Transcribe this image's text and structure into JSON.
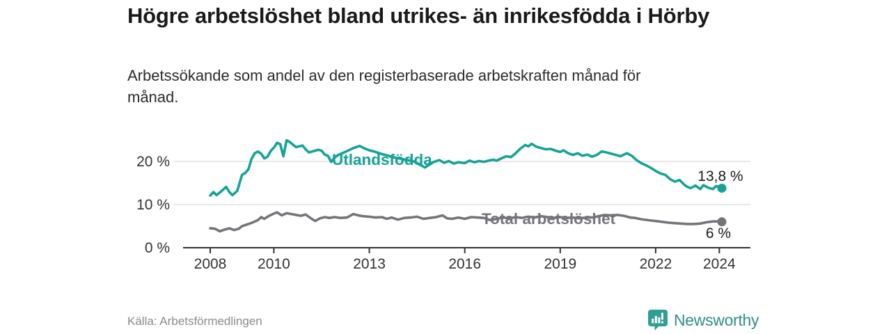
{
  "header": {
    "title": "Högre arbetslöshet bland utrikes- än inrikesfödda i Hörby",
    "subtitle": "Arbetssökande som andel av den registerbaserade arbetskraften månad för månad."
  },
  "footer": {
    "source": "Källa: Arbetsförmedlingen",
    "brand": "Newsworthy"
  },
  "colors": {
    "accent": "#15a396",
    "gray": "#75747a",
    "axis": "#333333",
    "grid": "#d9d9d9",
    "text": "#1a1a1a",
    "muted": "#8a8a8a",
    "brand": "#2f9e93"
  },
  "chart_data": {
    "type": "line",
    "title": "Högre arbetslöshet bland utrikes- än inrikesfödda i Hörby",
    "subtitle": "Arbetssökande som andel av den registerbaserade arbetskraften månad för månad.",
    "xlabel": "",
    "ylabel": "",
    "ylim": [
      0,
      27
    ],
    "xlim": [
      2007.6,
      2024.9
    ],
    "grid": "horizontal",
    "legend_position": "inline-labels",
    "yticks": [
      {
        "value": 0,
        "label": "0 %"
      },
      {
        "value": 10,
        "label": "10 %"
      },
      {
        "value": 20,
        "label": "20 %"
      }
    ],
    "xticks": [
      {
        "value": 2008,
        "label": "2008"
      },
      {
        "value": 2010,
        "label": "2010"
      },
      {
        "value": 2013,
        "label": "2013"
      },
      {
        "value": 2016,
        "label": "2016"
      },
      {
        "value": 2019,
        "label": "2019"
      },
      {
        "value": 2022,
        "label": "2022"
      },
      {
        "value": 2024,
        "label": "2024"
      }
    ],
    "series": [
      {
        "name": "Total arbetslöshet",
        "color": "#75747a",
        "end_label": "6 %",
        "points": [
          [
            2008.0,
            4.5
          ],
          [
            2008.15,
            4.4
          ],
          [
            2008.3,
            3.8
          ],
          [
            2008.45,
            4.2
          ],
          [
            2008.6,
            4.5
          ],
          [
            2008.75,
            4.1
          ],
          [
            2008.9,
            4.4
          ],
          [
            2009.0,
            5.0
          ],
          [
            2009.2,
            5.5
          ],
          [
            2009.35,
            5.9
          ],
          [
            2009.5,
            6.4
          ],
          [
            2009.6,
            7.1
          ],
          [
            2009.7,
            6.7
          ],
          [
            2009.85,
            7.4
          ],
          [
            2010.0,
            7.9
          ],
          [
            2010.1,
            8.2
          ],
          [
            2010.25,
            7.5
          ],
          [
            2010.4,
            8.0
          ],
          [
            2010.55,
            7.8
          ],
          [
            2010.7,
            7.6
          ],
          [
            2010.85,
            7.4
          ],
          [
            2011.0,
            7.7
          ],
          [
            2011.15,
            6.9
          ],
          [
            2011.3,
            6.2
          ],
          [
            2011.45,
            6.8
          ],
          [
            2011.6,
            7.1
          ],
          [
            2011.75,
            6.9
          ],
          [
            2011.9,
            7.1
          ],
          [
            2012.1,
            6.9
          ],
          [
            2012.3,
            7.0
          ],
          [
            2012.5,
            7.8
          ],
          [
            2012.65,
            7.5
          ],
          [
            2012.8,
            7.3
          ],
          [
            2013.0,
            7.2
          ],
          [
            2013.2,
            7.0
          ],
          [
            2013.4,
            7.1
          ],
          [
            2013.55,
            6.7
          ],
          [
            2013.7,
            7.0
          ],
          [
            2013.9,
            6.5
          ],
          [
            2014.1,
            6.9
          ],
          [
            2014.3,
            7.0
          ],
          [
            2014.5,
            7.2
          ],
          [
            2014.7,
            6.7
          ],
          [
            2014.9,
            6.9
          ],
          [
            2015.1,
            7.1
          ],
          [
            2015.3,
            7.5
          ],
          [
            2015.45,
            6.8
          ],
          [
            2015.6,
            6.7
          ],
          [
            2015.8,
            7.0
          ],
          [
            2016.0,
            6.7
          ],
          [
            2016.2,
            7.1
          ],
          [
            2016.4,
            7.0
          ],
          [
            2016.6,
            6.9
          ],
          [
            2016.8,
            6.4
          ],
          [
            2017.0,
            6.7
          ],
          [
            2017.2,
            7.0
          ],
          [
            2017.4,
            6.8
          ],
          [
            2017.6,
            7.1
          ],
          [
            2017.8,
            6.9
          ],
          [
            2018.0,
            7.2
          ],
          [
            2018.2,
            7.0
          ],
          [
            2018.4,
            7.3
          ],
          [
            2018.6,
            7.1
          ],
          [
            2018.8,
            6.9
          ],
          [
            2019.0,
            7.1
          ],
          [
            2019.2,
            6.9
          ],
          [
            2019.4,
            7.0
          ],
          [
            2019.6,
            6.8
          ],
          [
            2019.8,
            7.0
          ],
          [
            2020.0,
            7.0
          ],
          [
            2020.2,
            7.3
          ],
          [
            2020.4,
            7.6
          ],
          [
            2020.6,
            7.5
          ],
          [
            2020.8,
            7.6
          ],
          [
            2021.0,
            7.4
          ],
          [
            2021.2,
            7.0
          ],
          [
            2021.35,
            6.9
          ],
          [
            2021.55,
            6.6
          ],
          [
            2021.85,
            6.3
          ],
          [
            2022.1,
            6.1
          ],
          [
            2022.4,
            5.8
          ],
          [
            2022.6,
            5.7
          ],
          [
            2022.8,
            5.6
          ],
          [
            2023.0,
            5.5
          ],
          [
            2023.2,
            5.5
          ],
          [
            2023.4,
            5.6
          ],
          [
            2023.6,
            5.9
          ],
          [
            2023.8,
            6.1
          ],
          [
            2024.0,
            6.1
          ],
          [
            2024.08,
            6.0
          ]
        ]
      },
      {
        "name": "Utlandsfödda",
        "color": "#15a396",
        "end_label": "13,8 %",
        "points": [
          [
            2008.0,
            12.1
          ],
          [
            2008.1,
            12.9
          ],
          [
            2008.2,
            12.2
          ],
          [
            2008.35,
            13.1
          ],
          [
            2008.5,
            14.1
          ],
          [
            2008.6,
            12.9
          ],
          [
            2008.7,
            12.2
          ],
          [
            2008.85,
            13.2
          ],
          [
            2009.0,
            16.9
          ],
          [
            2009.1,
            17.3
          ],
          [
            2009.2,
            18.2
          ],
          [
            2009.3,
            20.6
          ],
          [
            2009.4,
            21.9
          ],
          [
            2009.5,
            22.3
          ],
          [
            2009.6,
            21.8
          ],
          [
            2009.7,
            20.7
          ],
          [
            2009.8,
            21.1
          ],
          [
            2009.9,
            22.4
          ],
          [
            2010.0,
            23.2
          ],
          [
            2010.1,
            24.3
          ],
          [
            2010.2,
            24.0
          ],
          [
            2010.3,
            21.2
          ],
          [
            2010.4,
            24.9
          ],
          [
            2010.5,
            24.5
          ],
          [
            2010.6,
            23.9
          ],
          [
            2010.7,
            23.3
          ],
          [
            2010.8,
            23.5
          ],
          [
            2010.9,
            23.7
          ],
          [
            2011.0,
            22.8
          ],
          [
            2011.1,
            22.1
          ],
          [
            2011.25,
            22.4
          ],
          [
            2011.4,
            22.7
          ],
          [
            2011.5,
            22.5
          ],
          [
            2011.6,
            21.6
          ],
          [
            2011.7,
            21.3
          ],
          [
            2011.8,
            19.9
          ],
          [
            2011.9,
            20.8
          ],
          [
            2012.0,
            21.4
          ],
          [
            2012.15,
            21.9
          ],
          [
            2012.3,
            22.4
          ],
          [
            2012.5,
            23.1
          ],
          [
            2012.7,
            23.6
          ],
          [
            2012.85,
            23.0
          ],
          [
            2013.0,
            22.6
          ],
          [
            2013.2,
            22.2
          ],
          [
            2013.4,
            21.7
          ],
          [
            2013.6,
            21.3
          ],
          [
            2013.8,
            20.9
          ],
          [
            2014.0,
            20.6
          ],
          [
            2014.2,
            20.3
          ],
          [
            2014.4,
            20.0
          ],
          [
            2014.6,
            19.2
          ],
          [
            2014.75,
            18.6
          ],
          [
            2014.9,
            19.3
          ],
          [
            2015.0,
            19.8
          ],
          [
            2015.2,
            20.3
          ],
          [
            2015.35,
            19.7
          ],
          [
            2015.5,
            20.1
          ],
          [
            2015.65,
            19.5
          ],
          [
            2015.8,
            19.8
          ],
          [
            2016.0,
            19.6
          ],
          [
            2016.15,
            20.2
          ],
          [
            2016.3,
            19.8
          ],
          [
            2016.45,
            20.1
          ],
          [
            2016.6,
            19.9
          ],
          [
            2016.75,
            20.2
          ],
          [
            2016.9,
            20.4
          ],
          [
            2017.0,
            20.2
          ],
          [
            2017.15,
            20.7
          ],
          [
            2017.3,
            21.2
          ],
          [
            2017.45,
            21.0
          ],
          [
            2017.6,
            21.9
          ],
          [
            2017.75,
            23.0
          ],
          [
            2017.9,
            23.8
          ],
          [
            2018.0,
            23.5
          ],
          [
            2018.1,
            24.1
          ],
          [
            2018.25,
            23.4
          ],
          [
            2018.4,
            23.1
          ],
          [
            2018.55,
            22.8
          ],
          [
            2018.7,
            22.9
          ],
          [
            2018.85,
            22.5
          ],
          [
            2019.0,
            22.2
          ],
          [
            2019.1,
            22.6
          ],
          [
            2019.25,
            21.9
          ],
          [
            2019.4,
            21.5
          ],
          [
            2019.55,
            21.9
          ],
          [
            2019.7,
            21.3
          ],
          [
            2019.85,
            21.6
          ],
          [
            2020.0,
            21.1
          ],
          [
            2020.15,
            21.5
          ],
          [
            2020.3,
            22.3
          ],
          [
            2020.45,
            22.1
          ],
          [
            2020.6,
            21.8
          ],
          [
            2020.75,
            21.5
          ],
          [
            2020.9,
            21.2
          ],
          [
            2021.0,
            21.6
          ],
          [
            2021.1,
            21.9
          ],
          [
            2021.25,
            21.3
          ],
          [
            2021.4,
            20.3
          ],
          [
            2021.55,
            19.6
          ],
          [
            2021.7,
            19.1
          ],
          [
            2021.85,
            18.5
          ],
          [
            2022.0,
            17.8
          ],
          [
            2022.15,
            17.2
          ],
          [
            2022.3,
            16.9
          ],
          [
            2022.45,
            15.9
          ],
          [
            2022.6,
            15.3
          ],
          [
            2022.75,
            15.7
          ],
          [
            2022.9,
            14.6
          ],
          [
            2023.0,
            14.1
          ],
          [
            2023.1,
            13.8
          ],
          [
            2023.25,
            14.4
          ],
          [
            2023.4,
            13.6
          ],
          [
            2023.5,
            14.5
          ],
          [
            2023.65,
            13.9
          ],
          [
            2023.8,
            13.6
          ],
          [
            2023.9,
            14.3
          ],
          [
            2024.0,
            14.0
          ],
          [
            2024.08,
            13.8
          ]
        ]
      }
    ]
  }
}
